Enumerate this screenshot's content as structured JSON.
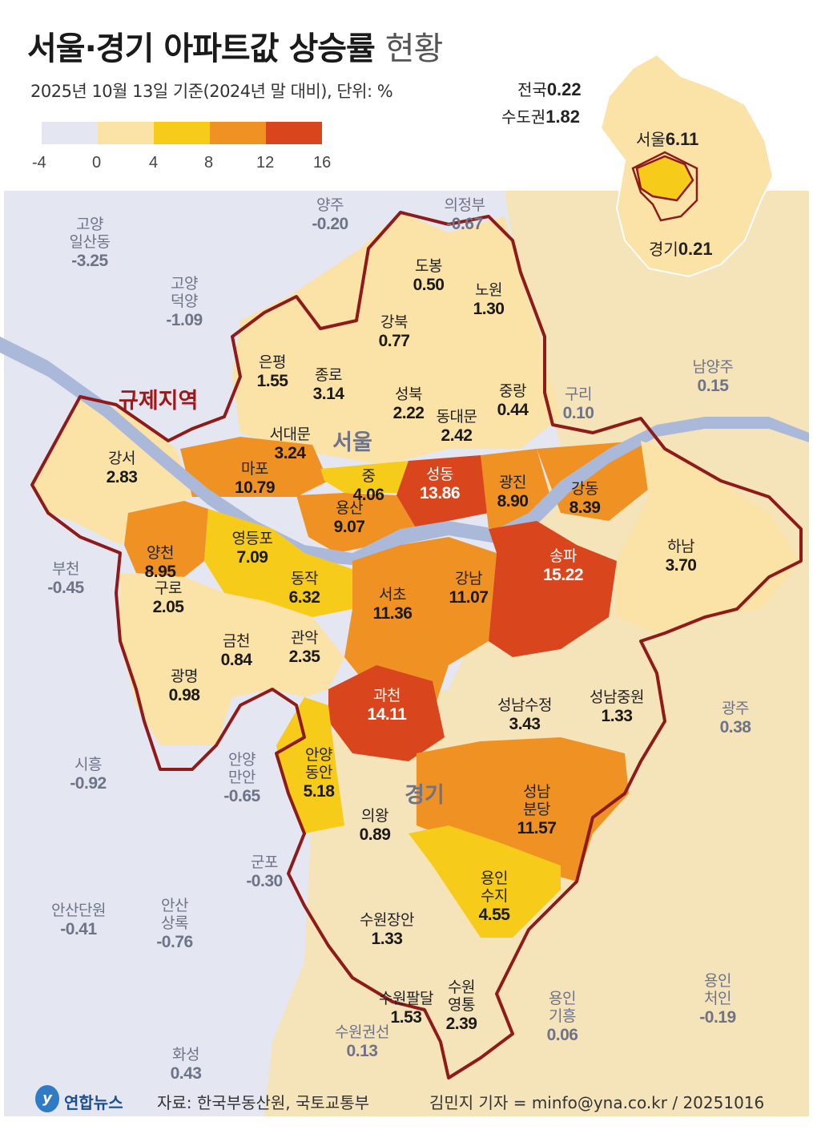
{
  "title": {
    "main": "서울·경기 아파트값 상승률",
    "suffix": "현황"
  },
  "subtitle": "2025년 10월 13일 기준(2024년 말 대비), 단위: %",
  "legend": {
    "colors": [
      "#e4e6f1",
      "#fbe2a7",
      "#f6cb1a",
      "#ef9123",
      "#d9461d"
    ],
    "ticks": [
      "-4",
      "0",
      "4",
      "8",
      "12",
      "16"
    ]
  },
  "summary": {
    "national_label": "전국",
    "national_value": "0.22",
    "capital_label": "수도권",
    "capital_value": "1.82"
  },
  "inset": {
    "seoul_label": "서울",
    "seoul_value": "6.11",
    "gyeonggi_label": "경기",
    "gyeonggi_value": "0.21"
  },
  "region_labels": {
    "seoul": "서울",
    "gyeonggi": "경기",
    "regulated": "규제지역"
  },
  "districts": [
    {
      "name": "도봉",
      "value": "0.50"
    },
    {
      "name": "노원",
      "value": "1.30"
    },
    {
      "name": "강북",
      "value": "0.77"
    },
    {
      "name": "은평",
      "value": "1.55"
    },
    {
      "name": "종로",
      "value": "3.14"
    },
    {
      "name": "성북",
      "value": "2.22"
    },
    {
      "name": "중랑",
      "value": "0.44"
    },
    {
      "name": "동대문",
      "value": "2.42"
    },
    {
      "name": "서대문",
      "value": "3.24"
    },
    {
      "name": "강서",
      "value": "2.83"
    },
    {
      "name": "마포",
      "value": "10.79"
    },
    {
      "name": "중",
      "value": "4.06"
    },
    {
      "name": "성동",
      "value": "13.86"
    },
    {
      "name": "광진",
      "value": "8.90"
    },
    {
      "name": "강동",
      "value": "8.39"
    },
    {
      "name": "용산",
      "value": "9.07"
    },
    {
      "name": "양천",
      "value": "8.95"
    },
    {
      "name": "영등포",
      "value": "7.09"
    },
    {
      "name": "구로",
      "value": "2.05"
    },
    {
      "name": "동작",
      "value": "6.32"
    },
    {
      "name": "서초",
      "value": "11.36"
    },
    {
      "name": "강남",
      "value": "11.07"
    },
    {
      "name": "송파",
      "value": "15.22"
    },
    {
      "name": "하남",
      "value": "3.70"
    },
    {
      "name": "금천",
      "value": "0.84"
    },
    {
      "name": "관악",
      "value": "2.35"
    },
    {
      "name": "광명",
      "value": "0.98"
    },
    {
      "name": "과천",
      "value": "14.11"
    },
    {
      "name": "성남수정",
      "value": "3.43"
    },
    {
      "name": "성남중원",
      "value": "1.33"
    },
    {
      "name": "안양\n동안",
      "value": "5.18"
    },
    {
      "name": "의왕",
      "value": "0.89"
    },
    {
      "name": "성남\n분당",
      "value": "11.57"
    },
    {
      "name": "용인\n수지",
      "value": "4.55"
    },
    {
      "name": "수원장안",
      "value": "1.33"
    },
    {
      "name": "수원팔달",
      "value": "1.53"
    },
    {
      "name": "수원\n영통",
      "value": "2.39"
    }
  ],
  "outside": [
    {
      "name": "양주",
      "value": "-0.20"
    },
    {
      "name": "의정부",
      "value": "-0.67"
    },
    {
      "name": "고양\n일산동",
      "value": "-3.25"
    },
    {
      "name": "고양\n덕양",
      "value": "-1.09"
    },
    {
      "name": "남양주",
      "value": "0.15"
    },
    {
      "name": "구리",
      "value": "0.10"
    },
    {
      "name": "부천",
      "value": "-0.45"
    },
    {
      "name": "광주",
      "value": "0.38"
    },
    {
      "name": "시흥",
      "value": "-0.92"
    },
    {
      "name": "안양\n만안",
      "value": "-0.65"
    },
    {
      "name": "군포",
      "value": "-0.30"
    },
    {
      "name": "안산단원",
      "value": "-0.41"
    },
    {
      "name": "안산\n상록",
      "value": "-0.76"
    },
    {
      "name": "용인\n처인",
      "value": "-0.19"
    },
    {
      "name": "용인\n기흥",
      "value": "0.06"
    },
    {
      "name": "수원권선",
      "value": "0.13"
    },
    {
      "name": "화성",
      "value": "0.43"
    }
  ],
  "footer": {
    "logo": "연합뉴스",
    "source": "자료: 한국부동산원, 국토교통부",
    "credit": "김민지 기자 = minfo@yna.co.kr / 20251016"
  }
}
